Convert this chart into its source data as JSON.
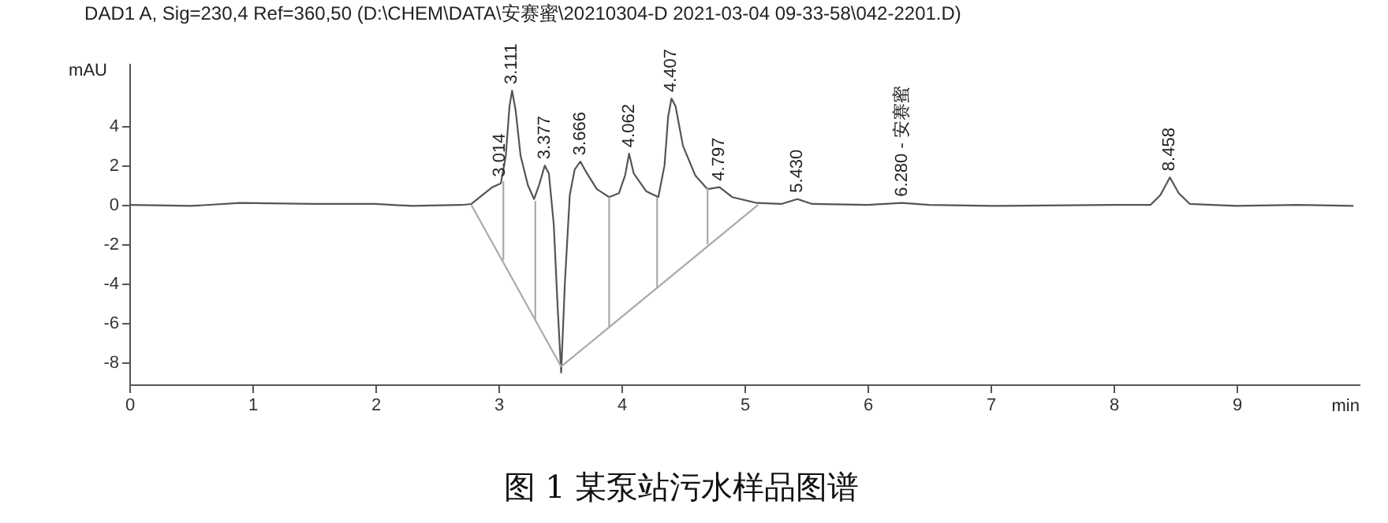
{
  "chart_data": {
    "type": "line",
    "title": "DAD1 A, Sig=230,4 Ref=360,50 (D:\\CHEM\\DATA\\安赛蜜\\20210304-D 2021-03-04 09-33-58\\042-2201.D)",
    "xlabel": "min",
    "ylabel": "mAU",
    "xlim": [
      0,
      10
    ],
    "ylim": [
      -9.1,
      7.2
    ],
    "xticks": [
      0,
      1,
      2,
      3,
      4,
      5,
      6,
      7,
      8,
      9
    ],
    "yticks": [
      -8,
      -6,
      -4,
      -2,
      0,
      2,
      4
    ],
    "series": [
      {
        "color": "#555555",
        "x": [
          0,
          0.5,
          0.9,
          1.5,
          2.0,
          2.3,
          2.7,
          2.78,
          2.85,
          2.95,
          3.02,
          3.06,
          3.09,
          3.111,
          3.14,
          3.18,
          3.24,
          3.29,
          3.33,
          3.377,
          3.41,
          3.45,
          3.48,
          3.51,
          3.54,
          3.58,
          3.62,
          3.666,
          3.72,
          3.8,
          3.9,
          3.98,
          4.03,
          4.062,
          4.1,
          4.2,
          4.3,
          4.35,
          4.38,
          4.407,
          4.44,
          4.5,
          4.6,
          4.7,
          4.797,
          4.9,
          5.1,
          5.3,
          5.43,
          5.55,
          6.0,
          6.28,
          6.5,
          7.0,
          8.0,
          8.3,
          8.38,
          8.458,
          8.53,
          8.62,
          9.0,
          9.5,
          9.95
        ],
        "values": [
          0,
          -0.05,
          0.1,
          0.05,
          0.05,
          -0.05,
          0,
          0.05,
          0.4,
          0.9,
          1.1,
          2.5,
          5.0,
          5.8,
          4.8,
          2.5,
          1.0,
          0.3,
          1.0,
          2.0,
          1.6,
          -1,
          -5,
          -8.5,
          -4,
          0.5,
          1.8,
          2.2,
          1.6,
          0.8,
          0.4,
          0.6,
          1.5,
          2.6,
          1.6,
          0.7,
          0.4,
          2.0,
          4.5,
          5.4,
          5.0,
          3.0,
          1.5,
          0.8,
          0.9,
          0.4,
          0.1,
          0.05,
          0.3,
          0.05,
          0,
          0.1,
          0,
          -0.05,
          0,
          0,
          0.5,
          1.4,
          0.6,
          0.05,
          -0.05,
          0,
          -0.05
        ]
      },
      {
        "color": "#aaaaaa",
        "x": [
          2.78,
          3.51,
          5.11
        ],
        "values": [
          0,
          -8.2,
          0
        ]
      },
      {
        "color": "#aaaaaa",
        "x": [
          3.04,
          3.04
        ],
        "values": [
          1.2,
          -2.8
        ]
      },
      {
        "color": "#aaaaaa",
        "x": [
          3.3,
          3.3
        ],
        "values": [
          0.2,
          -5.8
        ]
      },
      {
        "color": "#aaaaaa",
        "x": [
          3.9,
          3.9
        ],
        "values": [
          0.4,
          -6.2
        ]
      },
      {
        "color": "#aaaaaa",
        "x": [
          4.29,
          4.29
        ],
        "values": [
          0.4,
          -4.2
        ]
      },
      {
        "color": "#aaaaaa",
        "x": [
          4.7,
          4.7
        ],
        "values": [
          0.9,
          -2.0
        ]
      }
    ],
    "annotations": [
      {
        "text": "3.014",
        "x": 3.014,
        "y": 1.1
      },
      {
        "text": "3.111",
        "x": 3.111,
        "y": 5.8
      },
      {
        "text": "3.377",
        "x": 3.377,
        "y": 2.0
      },
      {
        "text": "3.666",
        "x": 3.666,
        "y": 2.2
      },
      {
        "text": "4.062",
        "x": 4.062,
        "y": 2.6
      },
      {
        "text": "4.407",
        "x": 4.407,
        "y": 5.4
      },
      {
        "text": "4.797",
        "x": 4.797,
        "y": 0.9
      },
      {
        "text": "5.430",
        "x": 5.43,
        "y": 0.3
      },
      {
        "text": "6.280 - 安赛蜜",
        "x": 6.28,
        "y": 0.1
      },
      {
        "text": "8.458",
        "x": 8.458,
        "y": 1.4
      },
      "图 1 某泵站污水样品图谱"
    ]
  }
}
